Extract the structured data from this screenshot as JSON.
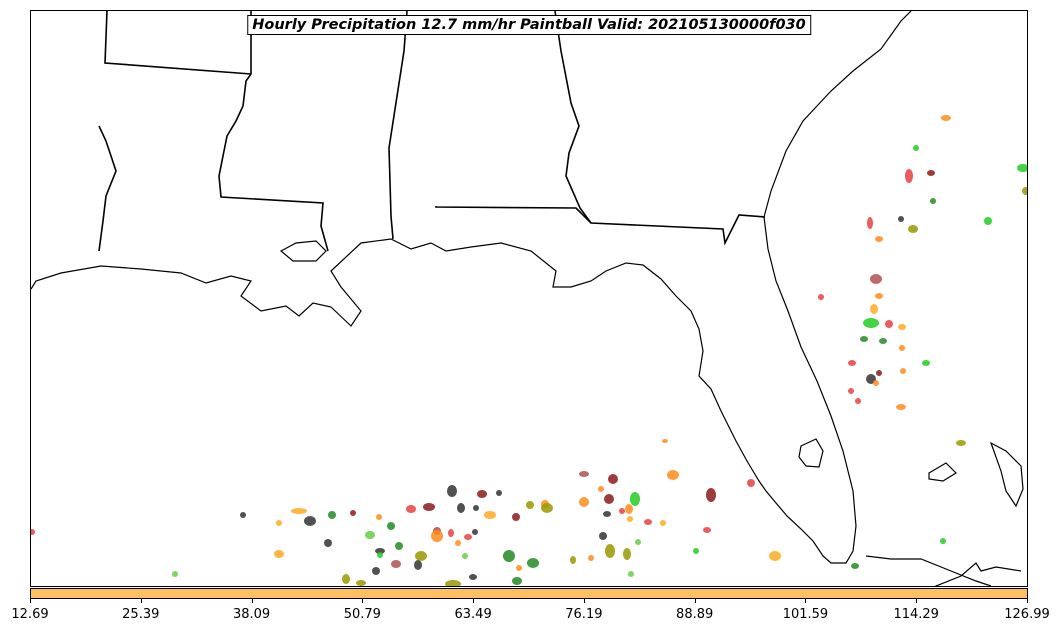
{
  "title": "Hourly Precipitation 12.7 mm/hr Paintball Valid: 202105130000f030",
  "colorbar": {
    "color": "#ffc062",
    "tick_labels": [
      "12.69",
      "25.39",
      "38.09",
      "50.79",
      "63.49",
      "76.19",
      "88.89",
      "101.59",
      "114.29",
      "126.99"
    ]
  },
  "map": {
    "region": "Southeastern United States / Gulf of Mexico",
    "features": [
      "coastlines",
      "state-borders"
    ],
    "member_colors": [
      "#ff8c1a",
      "#22cc22",
      "#228b22",
      "#e84040",
      "#8b1a1a",
      "#333333",
      "#999900",
      "#ffaa22",
      "#66cc44",
      "#b05050"
    ]
  }
}
